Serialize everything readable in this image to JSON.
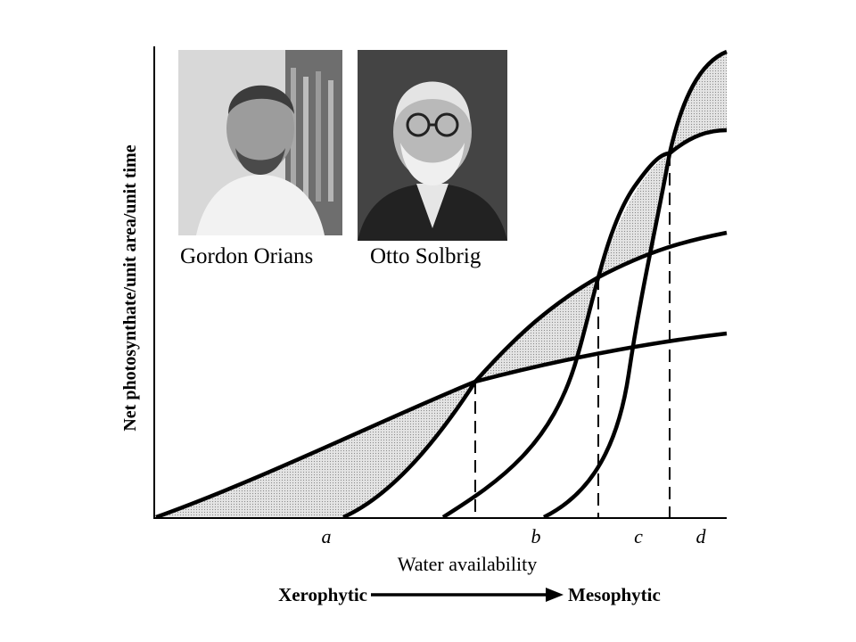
{
  "portraits": [
    {
      "name": "Gordon Orians"
    },
    {
      "name": "Otto Solbrig"
    }
  ],
  "axes": {
    "ylabel": "Net photosynthate/unit area/unit time",
    "xlabel": "Water availability"
  },
  "x_ticks": [
    "a",
    "b",
    "c",
    "d"
  ],
  "gradient": {
    "left": "Xerophytic",
    "right": "Mesophytic"
  },
  "colors": {
    "ink": "#000000",
    "shade": "#d4d4d4",
    "background": "#ffffff",
    "photo_bg_1": "#cfcfcf",
    "photo_bg_2": "#3a3a3a"
  }
}
